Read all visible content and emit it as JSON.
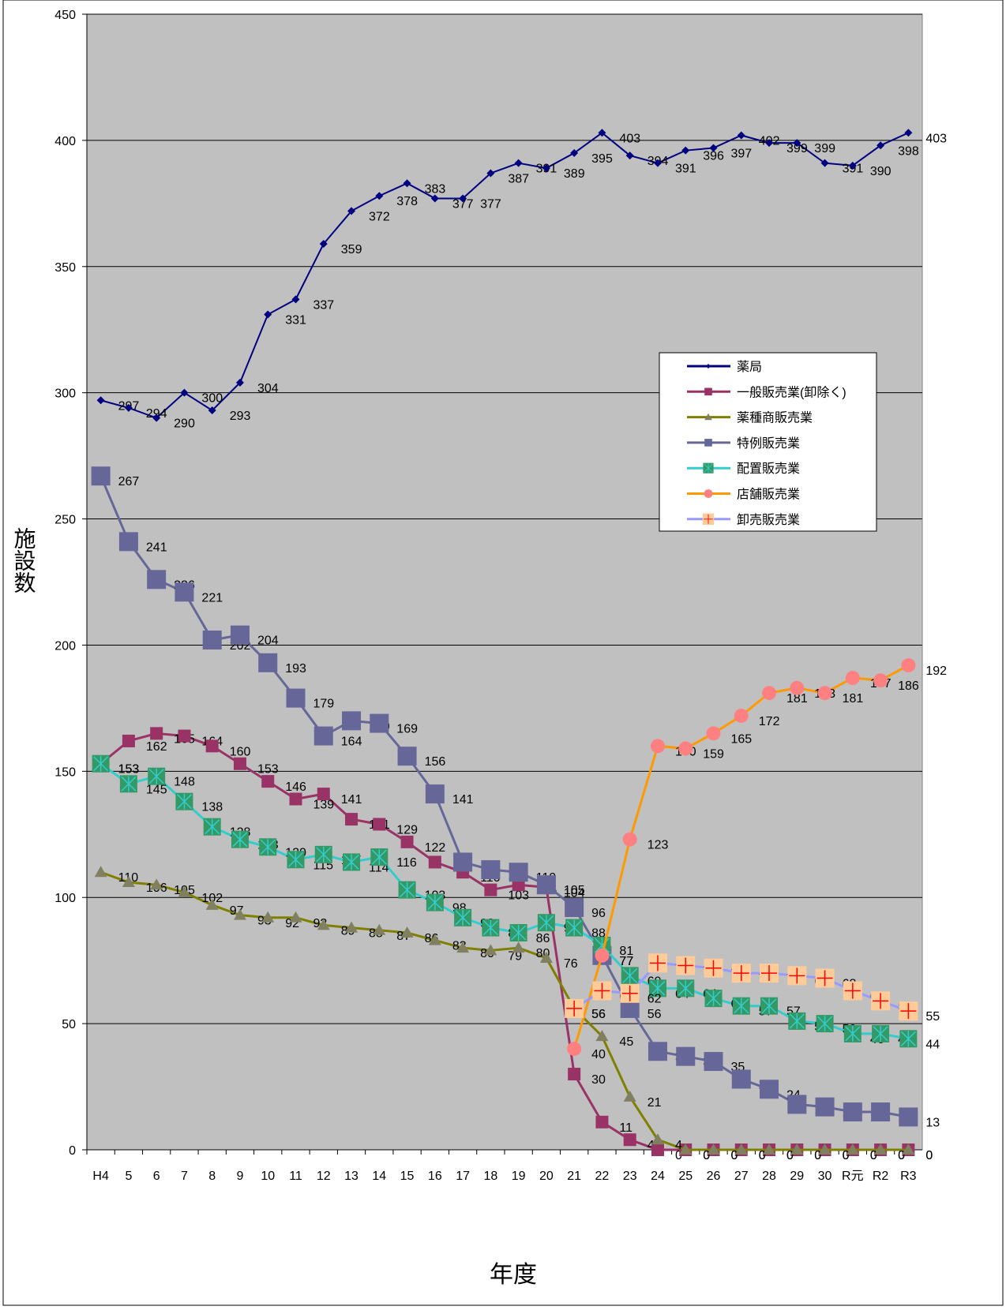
{
  "chart_data": {
    "type": "line",
    "y_label": "施設数",
    "x_label": "年度",
    "categories": [
      "H4",
      "5",
      "6",
      "7",
      "8",
      "9",
      "10",
      "11",
      "12",
      "13",
      "14",
      "15",
      "16",
      "17",
      "18",
      "19",
      "20",
      "21",
      "22",
      "23",
      "24",
      "25",
      "26",
      "27",
      "28",
      "29",
      "30",
      "R元",
      "R2",
      "R3"
    ],
    "ylim": [
      0,
      450
    ],
    "yticks": [
      0,
      50,
      100,
      150,
      200,
      250,
      300,
      350,
      400,
      450
    ],
    "grid": true,
    "legend": "right",
    "series": [
      {
        "name": "薬局",
        "color": "#000080",
        "marker": "diamond",
        "marker_color": "#000080",
        "values": [
          297,
          294,
          290,
          300,
          293,
          304,
          331,
          337,
          359,
          372,
          378,
          383,
          377,
          377,
          387,
          391,
          389,
          395,
          403,
          394,
          391,
          396,
          397,
          402,
          399,
          399,
          391,
          390,
          398,
          403
        ]
      },
      {
        "name": "一般販売業(卸除く)",
        "color": "#993366",
        "marker": "square",
        "marker_color": "#993366",
        "values": [
          153,
          162,
          165,
          164,
          160,
          153,
          146,
          139,
          141,
          131,
          129,
          122,
          114,
          110,
          103,
          105,
          104,
          30,
          11,
          4,
          0,
          0,
          0,
          0,
          0,
          0,
          0,
          0,
          0,
          0
        ]
      },
      {
        "name": "薬種商販売業",
        "color": "#808000",
        "marker": "triangle",
        "marker_color": "#808060",
        "values": [
          110,
          106,
          105,
          102,
          97,
          93,
          92,
          92,
          89,
          88,
          87,
          86,
          83,
          80,
          79,
          80,
          76,
          56,
          45,
          21,
          4,
          0,
          0,
          0,
          0,
          0,
          0,
          0,
          0,
          0
        ]
      },
      {
        "name": "特例販売業",
        "color": "#666699",
        "marker": "bigsquare",
        "marker_color": "#666699",
        "values": [
          267,
          241,
          226,
          221,
          202,
          204,
          193,
          179,
          164,
          170,
          169,
          156,
          141,
          114,
          111,
          110,
          105,
          96,
          77,
          56,
          39,
          37,
          35,
          28,
          24,
          18,
          17,
          15,
          15,
          13
        ]
      },
      {
        "name": "配置販売業",
        "color": "#33CCCC",
        "marker": "xsquare",
        "marker_color": "#339966",
        "values": [
          153,
          145,
          148,
          138,
          128,
          123,
          120,
          115,
          117,
          114,
          116,
          103,
          98,
          92,
          88,
          86,
          90,
          88,
          81,
          69,
          64,
          64,
          60,
          57,
          57,
          51,
          50,
          46,
          46,
          44
        ]
      },
      {
        "name": "店舗販売業",
        "color": "#FF9900",
        "marker": "circle",
        "marker_color": "#FF8080",
        "values": [
          null,
          null,
          null,
          null,
          null,
          null,
          null,
          null,
          null,
          null,
          null,
          null,
          null,
          null,
          null,
          null,
          null,
          40,
          77,
          123,
          160,
          159,
          165,
          172,
          181,
          183,
          181,
          187,
          186,
          192
        ]
      },
      {
        "name": "卸売販売業",
        "color": "#9999FF",
        "marker": "plussquare",
        "marker_color": "#FFCC99",
        "values": [
          null,
          null,
          null,
          null,
          null,
          null,
          null,
          null,
          null,
          null,
          null,
          null,
          null,
          null,
          null,
          null,
          null,
          56,
          63,
          62,
          74,
          73,
          72,
          70,
          70,
          69,
          68,
          63,
          59,
          55
        ]
      }
    ]
  }
}
